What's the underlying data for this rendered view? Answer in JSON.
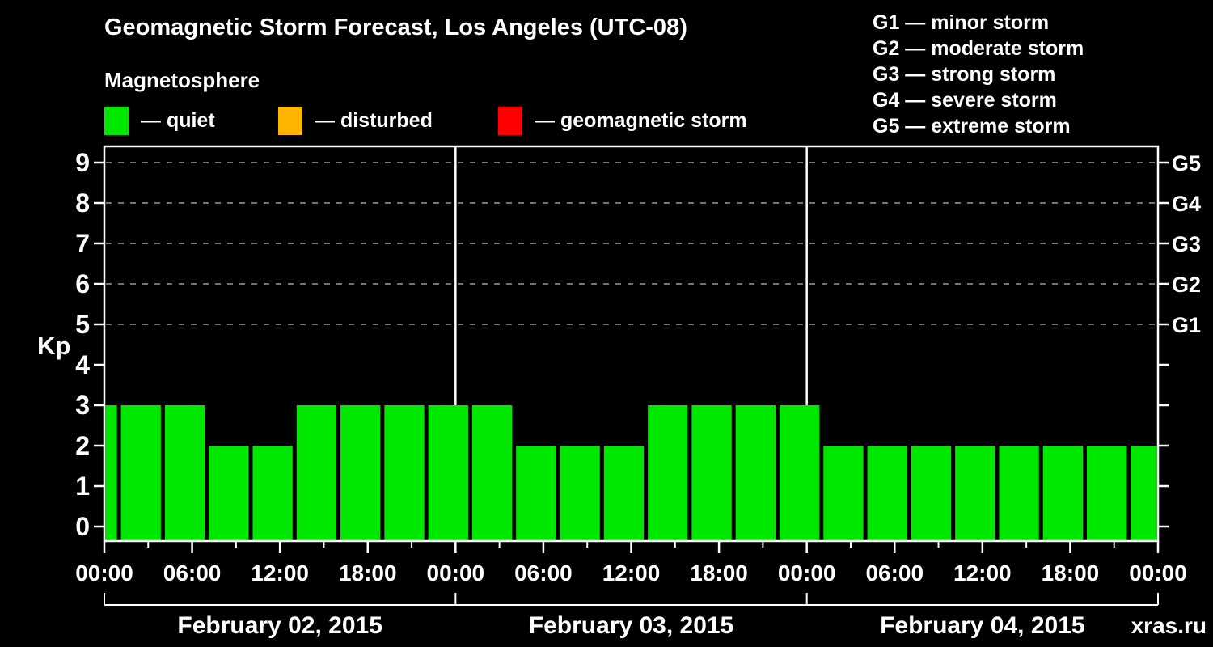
{
  "title": "Geomagnetic Storm Forecast, Los Angeles (UTC-08)",
  "subtitle": "Magnetosphere",
  "legend": {
    "items": [
      {
        "name": "quiet",
        "label": "— quiet",
        "color": "#00e800"
      },
      {
        "name": "disturbed",
        "label": "— disturbed",
        "color": "#ffb400"
      },
      {
        "name": "storm",
        "label": "— geomagnetic storm",
        "color": "#ff0000"
      }
    ]
  },
  "g_scale": {
    "items": [
      "G1 — minor storm",
      "G2 — moderate storm",
      "G3 — strong storm",
      "G4 — severe storm",
      "G5 — extreme storm"
    ]
  },
  "watermark": "xras.ru",
  "colors": {
    "background": "#000000",
    "axis": "#ffffff",
    "grid": "#9a9a9a",
    "quiet": "#00e800",
    "disturbed": "#ffb400",
    "storm": "#ff0000",
    "watermark": "#848484"
  },
  "chart_data": {
    "type": "bar",
    "title": "Geomagnetic Storm Forecast, Los Angeles (UTC-08)",
    "xlabel": "",
    "ylabel": "Kp",
    "ylim": [
      0,
      9
    ],
    "y_ticks": [
      0,
      1,
      2,
      3,
      4,
      5,
      6,
      7,
      8,
      9
    ],
    "grid_dashed_at_kp": [
      5,
      6,
      7,
      8,
      9
    ],
    "right_axis_labels": [
      {
        "kp": 5,
        "label": "G1"
      },
      {
        "kp": 6,
        "label": "G2"
      },
      {
        "kp": 7,
        "label": "G3"
      },
      {
        "kp": 8,
        "label": "G4"
      },
      {
        "kp": 9,
        "label": "G5"
      }
    ],
    "x_hours_total": 72,
    "x_tick_labels": [
      {
        "hour": 0,
        "label": "00:00"
      },
      {
        "hour": 6,
        "label": "06:00"
      },
      {
        "hour": 12,
        "label": "12:00"
      },
      {
        "hour": 18,
        "label": "18:00"
      },
      {
        "hour": 24,
        "label": "00:00"
      },
      {
        "hour": 30,
        "label": "06:00"
      },
      {
        "hour": 36,
        "label": "12:00"
      },
      {
        "hour": 42,
        "label": "18:00"
      },
      {
        "hour": 48,
        "label": "00:00"
      },
      {
        "hour": 54,
        "label": "06:00"
      },
      {
        "hour": 60,
        "label": "12:00"
      },
      {
        "hour": 66,
        "label": "18:00"
      },
      {
        "hour": 72,
        "label": "00:00"
      }
    ],
    "x_minor_tick_hours": [
      3,
      9,
      15,
      21,
      27,
      33,
      39,
      45,
      51,
      57,
      63,
      69
    ],
    "day_separator_hours": [
      24,
      48
    ],
    "days": [
      {
        "label": "February 02, 2015",
        "start_hour": 0,
        "end_hour": 24
      },
      {
        "label": "February 03, 2015",
        "start_hour": 24,
        "end_hour": 48
      },
      {
        "label": "February 04, 2015",
        "start_hour": 48,
        "end_hour": 72
      }
    ],
    "color_rule": {
      "quiet_max_kp": 3,
      "disturbed_max_kp": 4
    },
    "bars": [
      {
        "start_hour": 0,
        "end_hour": 1,
        "kp": 3
      },
      {
        "start_hour": 1,
        "end_hour": 4,
        "kp": 3
      },
      {
        "start_hour": 4,
        "end_hour": 7,
        "kp": 3
      },
      {
        "start_hour": 7,
        "end_hour": 10,
        "kp": 2
      },
      {
        "start_hour": 10,
        "end_hour": 13,
        "kp": 2
      },
      {
        "start_hour": 13,
        "end_hour": 16,
        "kp": 3
      },
      {
        "start_hour": 16,
        "end_hour": 19,
        "kp": 3
      },
      {
        "start_hour": 19,
        "end_hour": 22,
        "kp": 3
      },
      {
        "start_hour": 22,
        "end_hour": 25,
        "kp": 3
      },
      {
        "start_hour": 25,
        "end_hour": 28,
        "kp": 3
      },
      {
        "start_hour": 28,
        "end_hour": 31,
        "kp": 2
      },
      {
        "start_hour": 31,
        "end_hour": 34,
        "kp": 2
      },
      {
        "start_hour": 34,
        "end_hour": 37,
        "kp": 2
      },
      {
        "start_hour": 37,
        "end_hour": 40,
        "kp": 3
      },
      {
        "start_hour": 40,
        "end_hour": 43,
        "kp": 3
      },
      {
        "start_hour": 43,
        "end_hour": 46,
        "kp": 3
      },
      {
        "start_hour": 46,
        "end_hour": 49,
        "kp": 3
      },
      {
        "start_hour": 49,
        "end_hour": 52,
        "kp": 2
      },
      {
        "start_hour": 52,
        "end_hour": 55,
        "kp": 2
      },
      {
        "start_hour": 55,
        "end_hour": 58,
        "kp": 2
      },
      {
        "start_hour": 58,
        "end_hour": 61,
        "kp": 2
      },
      {
        "start_hour": 61,
        "end_hour": 64,
        "kp": 2
      },
      {
        "start_hour": 64,
        "end_hour": 67,
        "kp": 2
      },
      {
        "start_hour": 67,
        "end_hour": 70,
        "kp": 2
      },
      {
        "start_hour": 70,
        "end_hour": 72,
        "kp": 2
      }
    ]
  }
}
